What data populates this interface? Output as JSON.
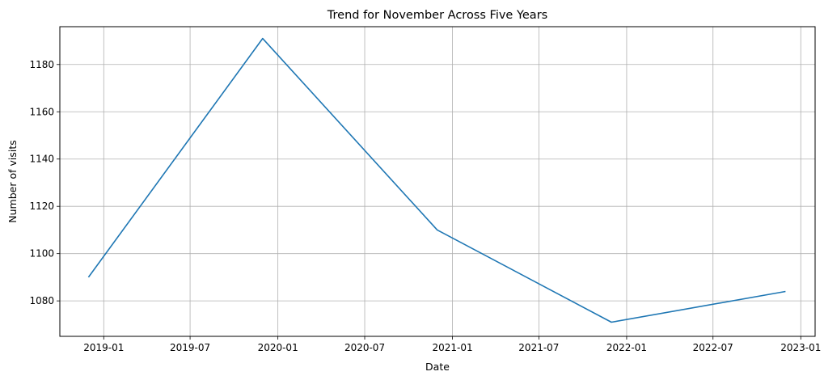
{
  "chart_data": {
    "type": "line",
    "title": "Trend for November Across Five Years",
    "xlabel": "Date",
    "ylabel": "Number of visits",
    "x_ticks": [
      "2019-01",
      "2019-07",
      "2020-01",
      "2020-07",
      "2021-01",
      "2021-07",
      "2022-01",
      "2022-07",
      "2023-01"
    ],
    "y_ticks": [
      1080,
      1100,
      1120,
      1140,
      1160,
      1180
    ],
    "xlim": [
      "2018-10-01",
      "2023-01-31"
    ],
    "ylim": [
      1065,
      1196
    ],
    "grid": true,
    "legend": "none",
    "series": [
      {
        "color": "#1f77b4",
        "points": [
          {
            "x": "2018-11-30",
            "y": 1090
          },
          {
            "x": "2019-11-30",
            "y": 1191
          },
          {
            "x": "2020-11-30",
            "y": 1110
          },
          {
            "x": "2021-11-30",
            "y": 1071
          },
          {
            "x": "2022-11-30",
            "y": 1084
          }
        ]
      }
    ]
  }
}
